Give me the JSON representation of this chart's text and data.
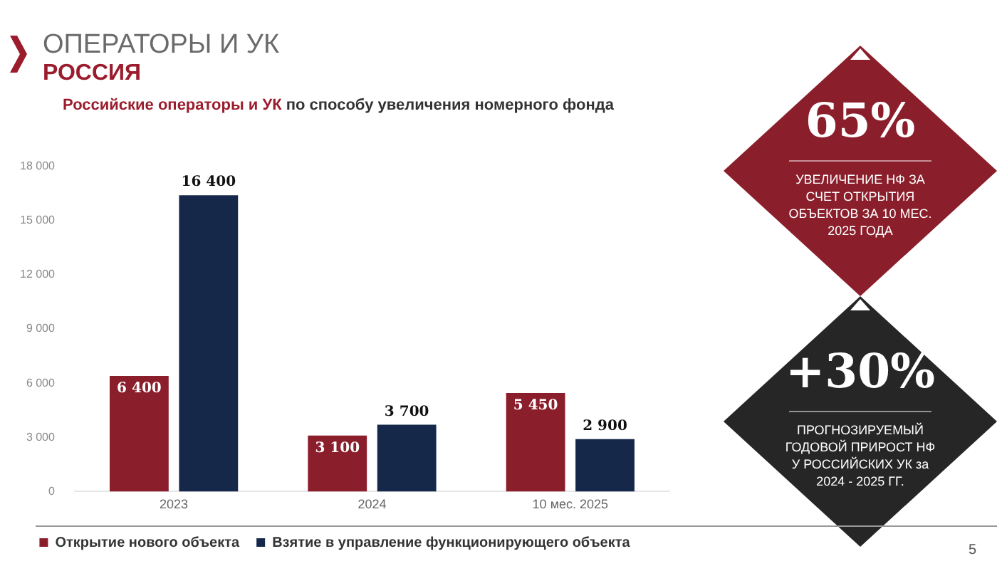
{
  "chart_data": {
    "type": "bar",
    "title": "ОПЕРАТОРЫ И УК",
    "subtitle": "РОССИЯ",
    "categories": [
      "2023",
      "2024",
      "10 мес. 2025"
    ],
    "series": [
      {
        "name": "Открытие нового объекта",
        "color": "#8b1e2b",
        "values": [
          6400,
          3100,
          5450
        ],
        "value_labels": [
          "6 400",
          "3 100",
          "5 450"
        ]
      },
      {
        "name": "Взятие в управление функционирующего объекта",
        "color": "#16284a",
        "values": [
          16400,
          3700,
          2900
        ],
        "value_labels": [
          "16 400",
          "3 700",
          "2 900"
        ]
      }
    ],
    "ylim": [
      0,
      18000
    ],
    "yticks": [
      0,
      {
        "value": 3000,
        "label": "3 000"
      },
      {
        "value": 6000,
        "label": "6 000"
      },
      {
        "value": 9000,
        "label": "9 000"
      },
      {
        "value": 12000,
        "label": "12 000"
      },
      {
        "value": 15000,
        "label": "15 000"
      },
      {
        "value": 18000,
        "label": "18 000"
      }
    ],
    "grid": false,
    "legend": "bottom",
    "annotations": [
      "Российские операторы и УК",
      "по способу увеличения номерного фонда",
      "65%",
      "УВЕЛИЧЕНИЕ НФ ЗА СЧЕТ ОТКРЫТИЯ ОБЪЕКТОВ ЗА 10 МЕС. 2025 ГОДА",
      "+30%",
      "ПРОГНОЗИРУЕМЫЙ ГОДОВОЙ ПРИРОСТ НФ У РОССИЙСКИХ УК за 2024 - 2025 ГГ.",
      "5"
    ]
  }
}
